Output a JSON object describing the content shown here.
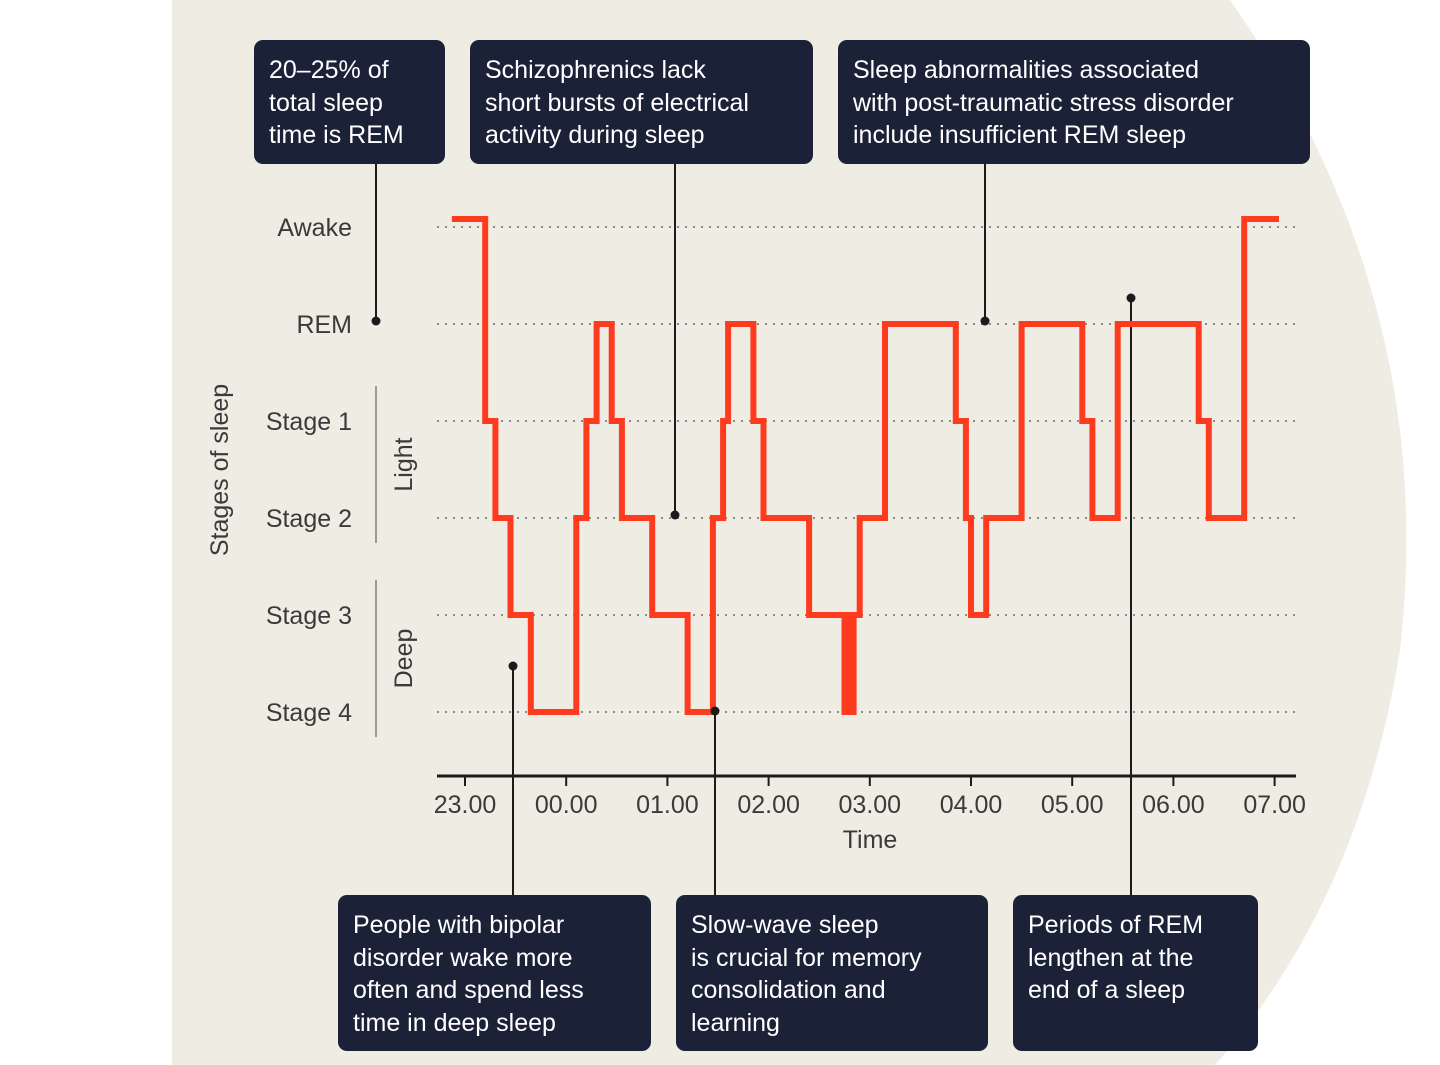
{
  "colors": {
    "background": "#efede3",
    "line": "#ff3b1f",
    "box": "#1b2238",
    "text": "#3a3a3a"
  },
  "annotations": {
    "rem_share": "20–25% of\ntotal sleep\ntime is REM",
    "schizophrenics": "Schizophrenics lack\nshort bursts of electrical\nactivity during sleep",
    "ptsd": "Sleep abnormalities associated\nwith post-traumatic stress disorder\ninclude insufficient REM sleep",
    "bipolar": "People with bipolar\ndisorder wake more\noften and spend less\ntime in deep sleep",
    "slow_wave": "Slow-wave sleep\nis crucial for memory\nconsolidation and\nlearning",
    "rem_lengthen": "Periods of REM\nlengthen at the\nend of a sleep"
  },
  "chart_data": {
    "type": "line",
    "step": true,
    "xlabel": "Time",
    "ylabel": "Stages of sleep",
    "y_categories": [
      "Awake",
      "REM",
      "Stage 1",
      "Stage 2",
      "Stage 3",
      "Stage 4"
    ],
    "y_groups": [
      {
        "label": "Light",
        "from": "Stage 1",
        "to": "Stage 2"
      },
      {
        "label": "Deep",
        "from": "Stage 3",
        "to": "Stage 4"
      }
    ],
    "x_ticks": [
      "23.00",
      "00.00",
      "01.00",
      "02.00",
      "03.00",
      "04.00",
      "05.00",
      "06.00",
      "07.00"
    ],
    "xlim_hours": [
      -1.0,
      7.2
    ],
    "grid": "dotted horizontal",
    "series": [
      {
        "hours": [
          -1.1,
          -0.8,
          -0.8,
          -0.7,
          -0.7,
          -0.55,
          -0.55,
          -0.35,
          -0.35,
          0.1,
          0.1,
          0.2,
          0.2,
          0.3,
          0.3,
          0.45,
          0.45,
          0.55,
          0.55,
          0.85,
          0.85,
          1.2,
          1.2,
          1.45,
          1.45,
          1.55,
          1.55,
          1.6,
          1.6,
          1.85,
          1.85,
          1.95,
          1.95,
          2.4,
          2.4,
          2.75,
          2.75,
          2.78,
          2.78,
          2.81,
          2.81,
          2.84,
          2.84,
          2.9,
          2.9,
          3.15,
          3.15,
          3.85,
          3.85,
          3.95,
          3.95,
          4.0,
          4.0,
          4.15,
          4.15,
          4.5,
          4.5,
          5.1,
          5.1,
          5.2,
          5.2,
          5.45,
          5.45,
          6.25,
          6.25,
          6.35,
          6.35,
          6.7,
          6.7,
          7.05
        ],
        "stage_index": [
          0,
          0,
          2,
          2,
          3,
          3,
          4,
          4,
          5,
          5,
          3,
          3,
          2,
          2,
          1,
          1,
          2,
          2,
          3,
          3,
          4,
          4,
          5,
          5,
          3,
          3,
          2,
          2,
          1,
          1,
          2,
          2,
          3,
          3,
          4,
          4,
          5,
          5,
          4,
          4,
          5,
          5,
          4,
          4,
          3,
          3,
          1,
          1,
          2,
          2,
          3,
          3,
          4,
          4,
          3,
          3,
          1,
          1,
          2,
          2,
          3,
          3,
          1,
          1,
          2,
          2,
          3,
          3,
          0,
          0
        ]
      }
    ]
  }
}
